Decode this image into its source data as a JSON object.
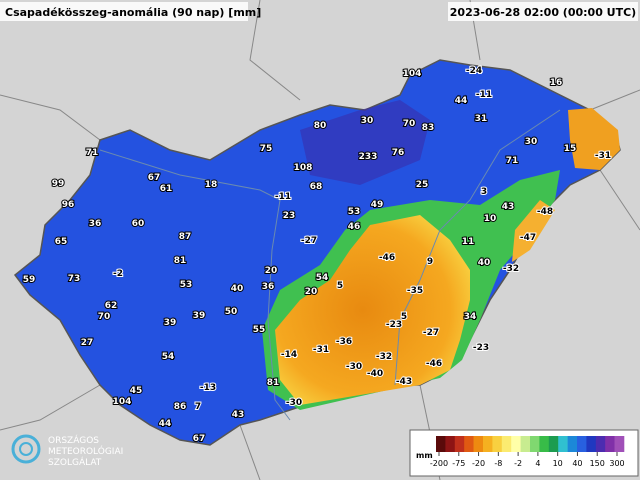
{
  "header": {
    "title": "Csapadékösszeg-anomália (90 nap) [mm]",
    "timestamp": "2023-06-28 02:00 (00:00 UTC)"
  },
  "stations": [
    104,
    -24,
    -11,
    16,
    44,
    31,
    80,
    30,
    70,
    83,
    30,
    15,
    -31,
    75,
    108,
    233,
    76,
    71,
    71,
    67,
    61,
    18,
    68,
    25,
    3,
    99,
    -11,
    96,
    23,
    53,
    49,
    43,
    -48,
    36,
    60,
    46,
    10,
    87,
    -27,
    11,
    -47,
    65,
    81,
    20,
    -46,
    9,
    40,
    -32,
    -2,
    73,
    59,
    53,
    54,
    40,
    36,
    5,
    20,
    -35,
    62,
    70,
    50,
    39,
    39,
    55,
    -23,
    5,
    34,
    -27,
    27,
    -36,
    -14,
    -31,
    -32,
    -23,
    54,
    -46,
    -30,
    -40,
    81,
    -43,
    -13,
    45,
    104,
    86,
    7,
    -30,
    43,
    44,
    67
  ],
  "legend": {
    "unit": "mm",
    "ticks": [
      -200,
      -75,
      -20,
      -8,
      -2,
      4,
      10,
      40,
      150,
      300
    ],
    "colors": [
      "#5a0a0a",
      "#8e1414",
      "#c0301c",
      "#e05a12",
      "#ee8a10",
      "#f5b020",
      "#f8d040",
      "#fbeb70",
      "#ffffa8",
      "#c8ec90",
      "#80d870",
      "#38bc48",
      "#1c9c50",
      "#30c0d0",
      "#1c88d8",
      "#2860e0",
      "#2038c0",
      "#4c2cb0",
      "#8030a8",
      "#a050b8"
    ]
  },
  "logo": {
    "line1": "ORSZÁGOS",
    "line2": "METEOROLÓGIAI",
    "line3": "SZOLGÁLAT"
  }
}
